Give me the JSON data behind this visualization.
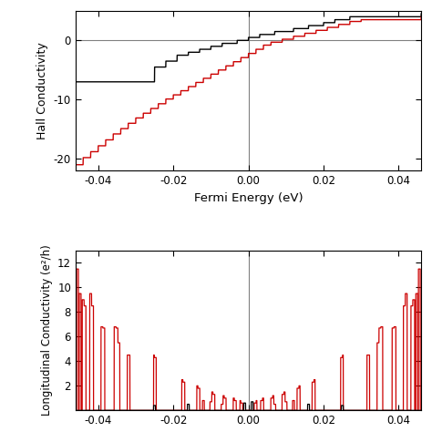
{
  "hall_xlim": [
    -0.046,
    0.046
  ],
  "hall_ylim": [
    -22,
    5
  ],
  "hall_yticks": [
    -20,
    -10,
    0
  ],
  "hall_xticks": [
    -0.04,
    -0.02,
    0.0,
    0.02,
    0.04
  ],
  "hall_xlabel": "Fermi Energy (eV)",
  "hall_ylabel": "Hall Conductivity",
  "long_xlim": [
    -0.046,
    0.046
  ],
  "long_ylim": [
    0,
    13
  ],
  "long_yticks": [
    2,
    4,
    6,
    8,
    10,
    12
  ],
  "long_ylabel": "Longitudinal Conductivity (e²/h)",
  "vline_x": 0.0,
  "hline_y": 0.0,
  "black_color": "#000000",
  "red_color": "#cc0000",
  "gray_color": "#808080",
  "background_color": "#ffffff",
  "line_width": 1.0
}
